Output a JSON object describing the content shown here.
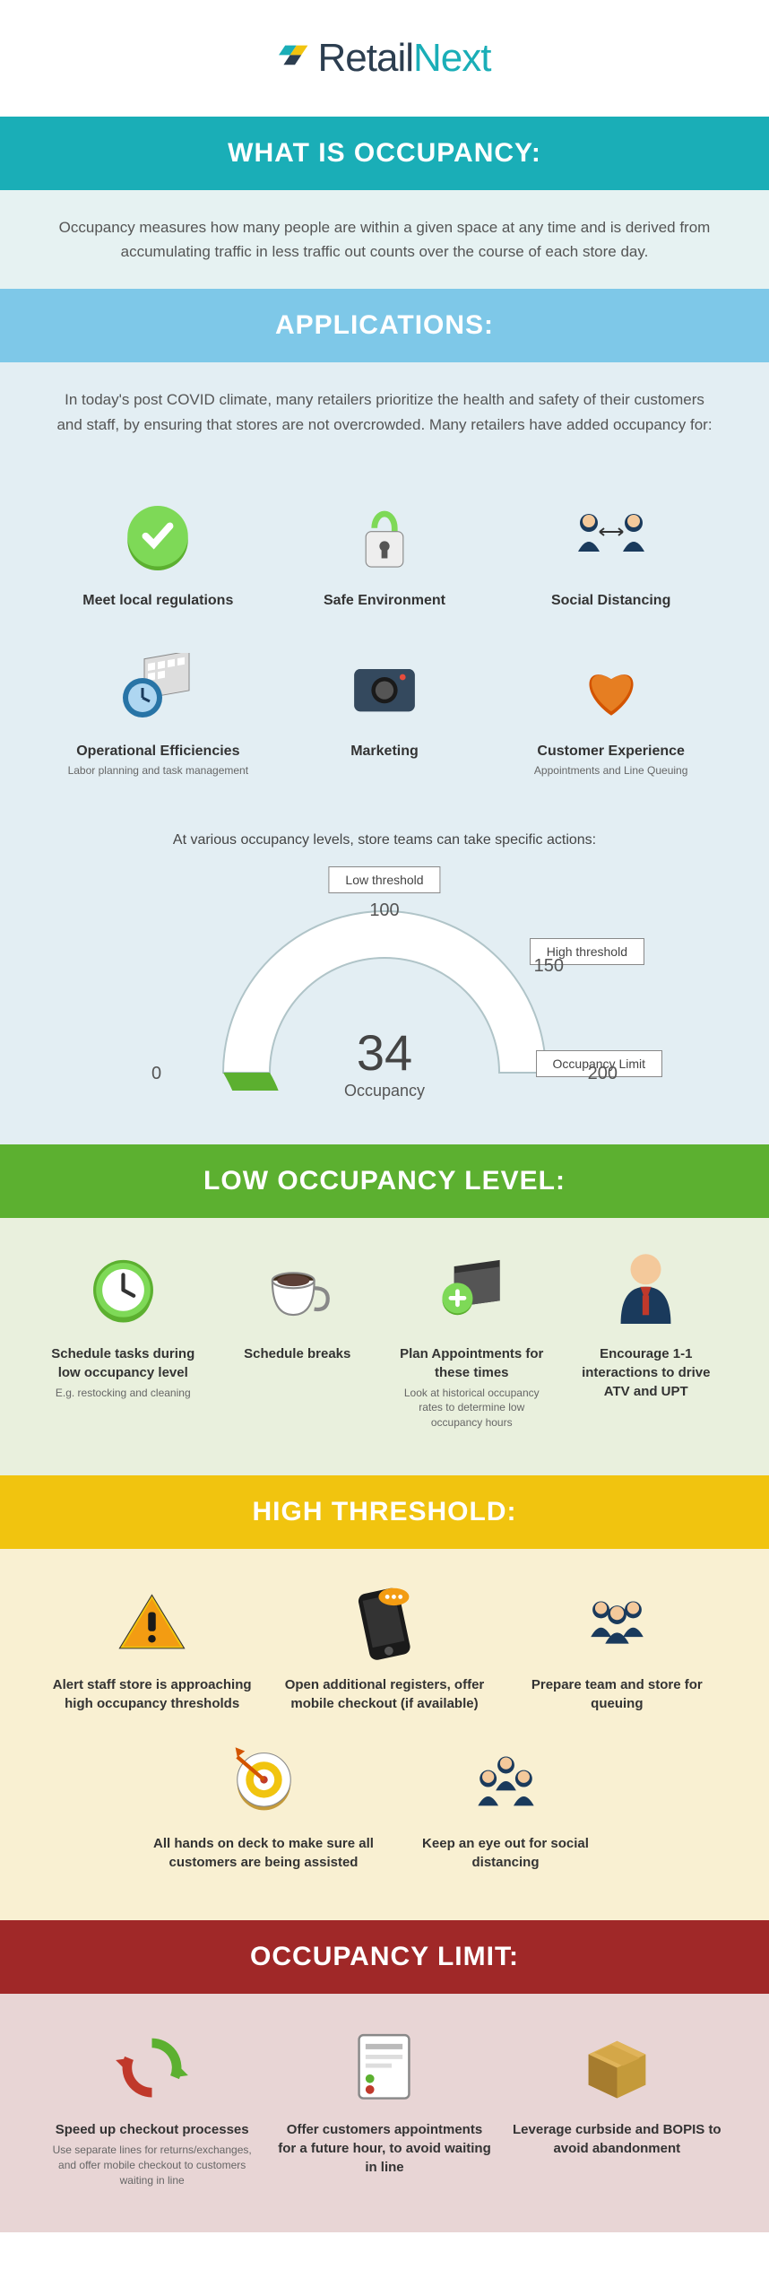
{
  "logo": {
    "name1": "Retail",
    "name2": "Next",
    "color1": "#2c3e50",
    "color2": "#1aaeb7"
  },
  "sections": {
    "occupancy": {
      "title": "WHAT IS OCCUPANCY:",
      "desc": "Occupancy measures how many people are within a given space at any time and is derived from accumulating traffic in less traffic out counts over the course of each store day.",
      "banner_bg": "#1aaeb7",
      "desc_bg": "#e6f2f2"
    },
    "applications": {
      "title": "APPLICATIONS:",
      "desc": "In today's post COVID climate, many retailers prioritize the health and safety of their customers and staff, by ensuring that stores are not overcrowded. Many retailers have added occupancy for:",
      "banner_bg": "#7ec8e8",
      "section_bg": "#e3eef3",
      "items": [
        {
          "label": "Meet local regulations",
          "sub": "",
          "icon": "check-shield"
        },
        {
          "label": "Safe Environment",
          "sub": "",
          "icon": "lock"
        },
        {
          "label": "Social Distancing",
          "sub": "",
          "icon": "people-distance"
        },
        {
          "label": "Operational Efficiencies",
          "sub": "Labor planning and task management",
          "icon": "clock-calendar"
        },
        {
          "label": "Marketing",
          "sub": "",
          "icon": "camera"
        },
        {
          "label": "Customer Experience",
          "sub": "Appointments and Line Queuing",
          "icon": "heart"
        }
      ],
      "gauge_intro": "At various occupancy levels, store teams can take specific actions:",
      "gauge": {
        "value": 34,
        "label": "Occupancy",
        "min": 0,
        "low_threshold": 100,
        "high_threshold": 150,
        "limit": 200,
        "low_label": "Low threshold",
        "high_label": "High threshold",
        "limit_label": "Occupancy Limit",
        "fill_color": "#5cb030",
        "track_color": "#ffffff",
        "stroke": "#b0c4c8"
      }
    },
    "low": {
      "title": "LOW OCCUPANCY LEVEL:",
      "banner_bg": "#5cb030",
      "section_bg": "#e9f0dd",
      "items": [
        {
          "title": "Schedule tasks during low occupancy level",
          "sub": "E.g. restocking and cleaning",
          "icon": "clock-green"
        },
        {
          "title": "Schedule breaks",
          "sub": "",
          "icon": "coffee"
        },
        {
          "title": "Plan Appointments for these times",
          "sub": "Look at historical occupancy rates to determine low occupancy hours",
          "icon": "calendar-plus"
        },
        {
          "title": "Encourage 1-1 interactions to drive ATV and UPT",
          "sub": "",
          "icon": "person"
        }
      ]
    },
    "high": {
      "title": "HIGH THRESHOLD:",
      "banner_bg": "#f1c40f",
      "section_bg": "#f9f0d2",
      "items_top": [
        {
          "title": "Alert staff store <b>is approaching high occupancy thresholds</b>",
          "icon": "warning"
        },
        {
          "title": "Open additional registers, <b>offer mobile checkout</b> (if available)",
          "icon": "phone"
        },
        {
          "title": "Prepare team and store for queuing",
          "icon": "group"
        }
      ],
      "items_bottom": [
        {
          "title": "<b>All hands on deck</b> to make sure all customers are being assisted",
          "icon": "target"
        },
        {
          "title": "Keep an eye out <b>for social distancing</b>",
          "icon": "group-talk"
        }
      ]
    },
    "limit": {
      "title": "OCCUPANCY LIMIT:",
      "banner_bg": "#a02828",
      "section_bg": "#e8d5d5",
      "items": [
        {
          "title": "<b>Speed up checkout processes</b>",
          "sub": "Use separate lines for returns/exchanges, and offer mobile checkout to customers waiting in line",
          "icon": "arrows-cycle"
        },
        {
          "title": "Offer customers appointments for a future hour, <b>to avoid waiting in line</b>",
          "sub": "",
          "icon": "receipt"
        },
        {
          "title": "Leverage curbside and <b>BOPIS to avoid abandonment</b>",
          "sub": "",
          "icon": "box"
        }
      ]
    }
  }
}
